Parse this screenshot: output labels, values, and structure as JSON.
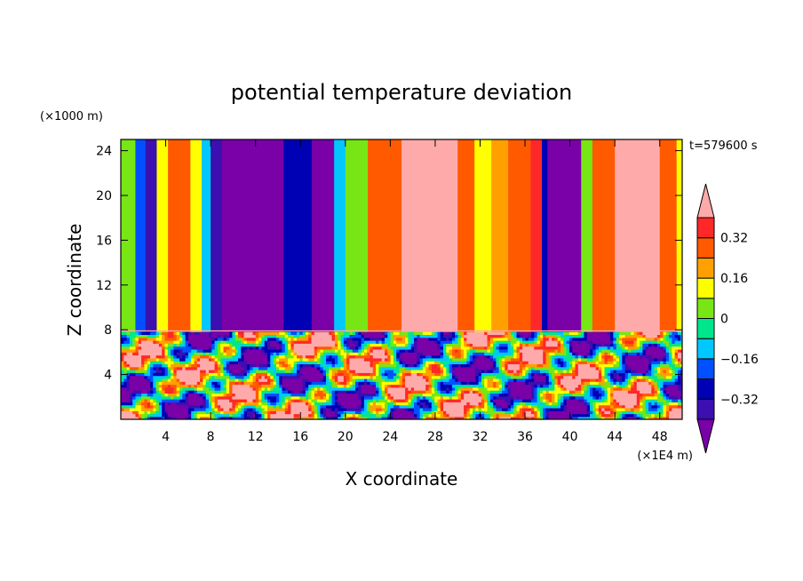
{
  "chart_data": {
    "type": "heatmap",
    "title": "potential temperature deviation",
    "xlabel": "X coordinate",
    "ylabel": "Z coordinate",
    "x_unit": "(×1E4 m)",
    "y_unit": "(×1000 m)",
    "time_label": "t=579600 s",
    "xlim": [
      0,
      50
    ],
    "ylim": [
      0,
      25
    ],
    "x_ticks": [
      4,
      8,
      12,
      16,
      20,
      24,
      28,
      32,
      36,
      40,
      44,
      48
    ],
    "y_ticks": [
      4,
      8,
      12,
      16,
      20,
      24
    ],
    "x_tick_labels": [
      "4",
      "8",
      "12",
      "16",
      "20",
      "24",
      "28",
      "32",
      "36",
      "40",
      "44",
      "48"
    ],
    "y_tick_labels": [
      "4",
      "8",
      "12",
      "16",
      "20",
      "24"
    ],
    "colorbar": {
      "levels": [
        -0.4,
        -0.32,
        -0.24,
        -0.16,
        -0.08,
        0,
        0.08,
        0.16,
        0.24,
        0.32,
        0.4
      ],
      "labeled_levels": [
        -0.32,
        -0.16,
        0,
        0.16,
        0.32
      ],
      "labels": [
        "−0.32",
        "−0.16",
        "0",
        "0.16",
        "0.32"
      ],
      "colors": [
        "#7a00a8",
        "#3b0fb0",
        "#0000b4",
        "#0050ff",
        "#00c8ff",
        "#00e68c",
        "#78e614",
        "#ffff00",
        "#ffa000",
        "#ff5a00",
        "#ff2828",
        "#ffaaaa"
      ],
      "extend": "both"
    },
    "upper_layer_bands": [
      {
        "x": [
          0.0,
          1.3
        ],
        "value": 0.0
      },
      {
        "x": [
          1.3,
          2.2
        ],
        "value": -0.2
      },
      {
        "x": [
          2.2,
          3.2
        ],
        "value": -0.36
      },
      {
        "x": [
          3.2,
          4.2
        ],
        "value": 0.12
      },
      {
        "x": [
          4.2,
          6.2
        ],
        "value": 0.25
      },
      {
        "x": [
          6.2,
          7.2
        ],
        "value": 0.12
      },
      {
        "x": [
          7.2,
          8.0
        ],
        "value": -0.12
      },
      {
        "x": [
          8.0,
          9.0
        ],
        "value": -0.36
      },
      {
        "x": [
          9.0,
          14.5
        ],
        "value": -0.44
      },
      {
        "x": [
          14.5,
          17.0
        ],
        "value": -0.3
      },
      {
        "x": [
          17.0,
          19.0
        ],
        "value": -0.44
      },
      {
        "x": [
          19.0,
          20.0
        ],
        "value": -0.12
      },
      {
        "x": [
          20.0,
          22.0
        ],
        "value": 0.05
      },
      {
        "x": [
          22.0,
          25.0
        ],
        "value": 0.3
      },
      {
        "x": [
          25.0,
          30.0
        ],
        "value": 0.44
      },
      {
        "x": [
          30.0,
          31.5
        ],
        "value": 0.3
      },
      {
        "x": [
          31.5,
          33.0
        ],
        "value": 0.1
      },
      {
        "x": [
          33.0,
          34.5
        ],
        "value": 0.2
      },
      {
        "x": [
          34.5,
          36.5
        ],
        "value": 0.3
      },
      {
        "x": [
          36.5,
          37.5
        ],
        "value": 0.36
      },
      {
        "x": [
          37.5,
          38.0
        ],
        "value": -0.3
      },
      {
        "x": [
          38.0,
          41.0
        ],
        "value": -0.44
      },
      {
        "x": [
          41.0,
          42.0
        ],
        "value": 0.05
      },
      {
        "x": [
          42.0,
          44.0
        ],
        "value": 0.25
      },
      {
        "x": [
          44.0,
          48.0
        ],
        "value": 0.44
      },
      {
        "x": [
          48.0,
          49.5
        ],
        "value": 0.3
      },
      {
        "x": [
          49.5,
          50.0
        ],
        "value": 0.15
      }
    ]
  }
}
